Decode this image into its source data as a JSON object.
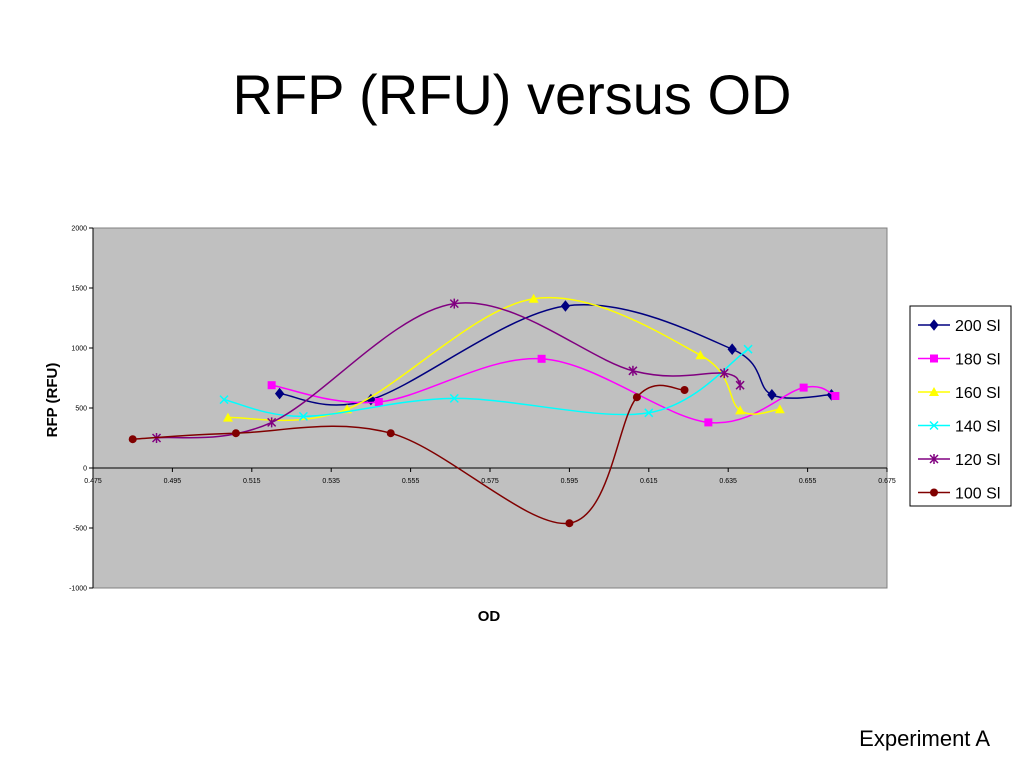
{
  "slide": {
    "title": "RFP (RFU) versus OD",
    "footer": "Experiment A"
  },
  "chart_data": {
    "type": "line",
    "title": "",
    "xlabel": "OD",
    "ylabel": "RFP (RFU)",
    "xlim": [
      0.475,
      0.675
    ],
    "ylim": [
      -1000,
      2000
    ],
    "x_ticks": [
      "0.475",
      "0.495",
      "0.515",
      "0.535",
      "0.555",
      "0.575",
      "0.595",
      "0.615",
      "0.635",
      "0.655",
      "0.675"
    ],
    "y_ticks": [
      "-1000",
      "-500",
      "0",
      "500",
      "1000",
      "1500",
      "2000"
    ],
    "plot_background": "#C0C0C0",
    "grid": false,
    "legend_position": "right",
    "series": [
      {
        "name": "200 Sl",
        "color": "#000080",
        "marker": "diamond",
        "points": [
          [
            0.522,
            620
          ],
          [
            0.545,
            570
          ],
          [
            0.594,
            1350
          ],
          [
            0.636,
            990
          ],
          [
            0.646,
            610
          ],
          [
            0.661,
            610
          ]
        ]
      },
      {
        "name": "180 Sl",
        "color": "#FF00FF",
        "marker": "square",
        "points": [
          [
            0.52,
            690
          ],
          [
            0.547,
            550
          ],
          [
            0.588,
            910
          ],
          [
            0.63,
            380
          ],
          [
            0.654,
            670
          ],
          [
            0.662,
            600
          ]
        ]
      },
      {
        "name": "160 Sl",
        "color": "#FFFF00",
        "marker": "triangle",
        "points": [
          [
            0.509,
            420
          ],
          [
            0.539,
            490
          ],
          [
            0.586,
            1410
          ],
          [
            0.628,
            940
          ],
          [
            0.638,
            480
          ],
          [
            0.648,
            490
          ]
        ]
      },
      {
        "name": "140 Sl",
        "color": "#00FFFF",
        "marker": "x",
        "points": [
          [
            0.508,
            570
          ],
          [
            0.528,
            430
          ],
          [
            0.566,
            580
          ],
          [
            0.615,
            460
          ],
          [
            0.64,
            990
          ]
        ]
      },
      {
        "name": "120 Sl",
        "color": "#800080",
        "marker": "star",
        "points": [
          [
            0.491,
            250
          ],
          [
            0.52,
            380
          ],
          [
            0.566,
            1370
          ],
          [
            0.611,
            810
          ],
          [
            0.634,
            790
          ],
          [
            0.638,
            690
          ]
        ]
      },
      {
        "name": "100 Sl",
        "color": "#800000",
        "marker": "circle",
        "points": [
          [
            0.485,
            240
          ],
          [
            0.511,
            290
          ],
          [
            0.55,
            290
          ],
          [
            0.595,
            -460
          ],
          [
            0.612,
            590
          ],
          [
            0.624,
            650
          ]
        ]
      }
    ]
  }
}
